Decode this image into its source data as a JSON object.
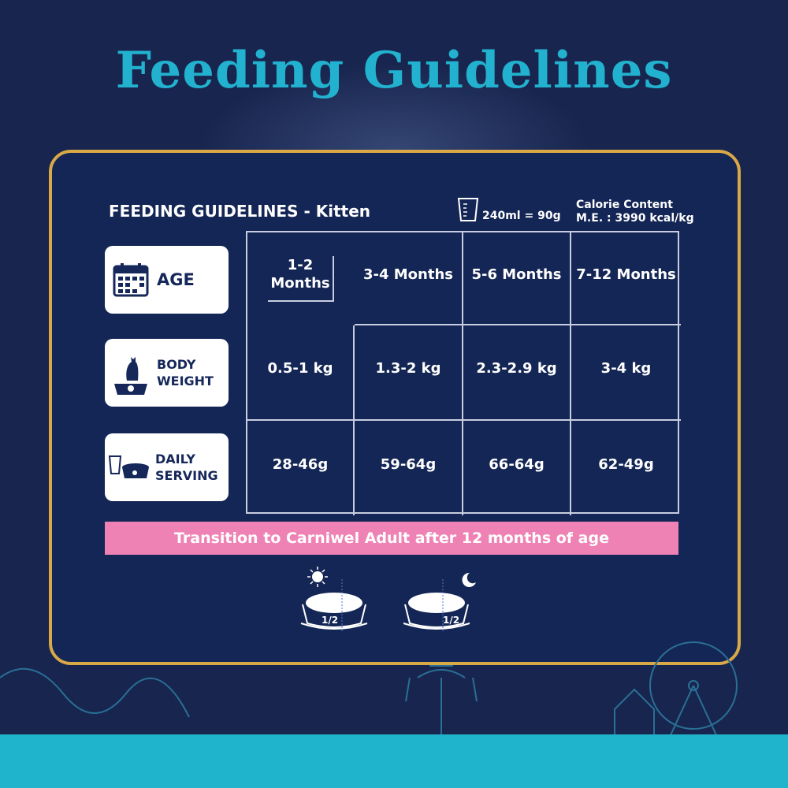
{
  "title": "Feeding Guidelines",
  "card": {
    "header": "FEEDING GUIDELINES - Kitten",
    "cup_measure": "240ml = 90g",
    "calorie_label": "Calorie Content",
    "calorie_value": "M.E. : 3990 kcal/kg",
    "row_labels": [
      {
        "label": "AGE",
        "icon": "calendar-icon"
      },
      {
        "label": "BODY WEIGHT",
        "icon": "cat-on-scale-icon"
      },
      {
        "label": "DAILY SERVING",
        "icon": "food-bowl-icon"
      }
    ],
    "table": [
      [
        "1-2 Months",
        "3-4 Months",
        "5-6 Months",
        "7-12 Months"
      ],
      [
        "0.5-1 kg",
        "1.3-2 kg",
        "2.3-2.9 kg",
        "3-4 kg"
      ],
      [
        "28-46g",
        "59-64g",
        "66-64g",
        "62-49g"
      ]
    ],
    "banner": "Transition to Carniwel Adult after 12 months of age",
    "bowls": [
      {
        "time": "day",
        "icon": "sun-icon",
        "portion": "1/2"
      },
      {
        "time": "night",
        "icon": "moon-icon",
        "portion": "1/2"
      }
    ]
  },
  "colors": {
    "title": "#22b2cf",
    "border": "#d9a948",
    "banner": "#ef82b4",
    "band": "#1fb4cb",
    "background": "#18264f"
  }
}
